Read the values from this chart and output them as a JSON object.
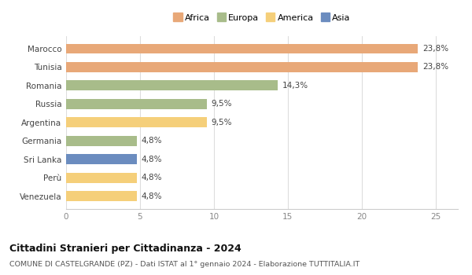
{
  "categories": [
    "Venezuela",
    "Perù",
    "Sri Lanka",
    "Germania",
    "Argentina",
    "Russia",
    "Romania",
    "Tunisia",
    "Marocco"
  ],
  "values": [
    4.8,
    4.8,
    4.8,
    4.8,
    9.5,
    9.5,
    14.3,
    23.8,
    23.8
  ],
  "labels": [
    "4,8%",
    "4,8%",
    "4,8%",
    "4,8%",
    "9,5%",
    "9,5%",
    "14,3%",
    "23,8%",
    "23,8%"
  ],
  "colors": [
    "#f5cf7a",
    "#f5cf7a",
    "#6b8cbf",
    "#a8bc8a",
    "#f5cf7a",
    "#a8bc8a",
    "#a8bc8a",
    "#e8a878",
    "#e8a878"
  ],
  "legend_labels": [
    "Africa",
    "Europa",
    "America",
    "Asia"
  ],
  "legend_colors": [
    "#e8a878",
    "#a8bc8a",
    "#f5cf7a",
    "#6b8cbf"
  ],
  "title": "Cittadini Stranieri per Cittadinanza - 2024",
  "subtitle": "COMUNE DI CASTELGRANDE (PZ) - Dati ISTAT al 1° gennaio 2024 - Elaborazione TUTTITALIA.IT",
  "xlim": [
    0,
    26.5
  ],
  "xticks": [
    0,
    5,
    10,
    15,
    20,
    25
  ],
  "background_color": "#ffffff",
  "grid_color": "#ffffff"
}
